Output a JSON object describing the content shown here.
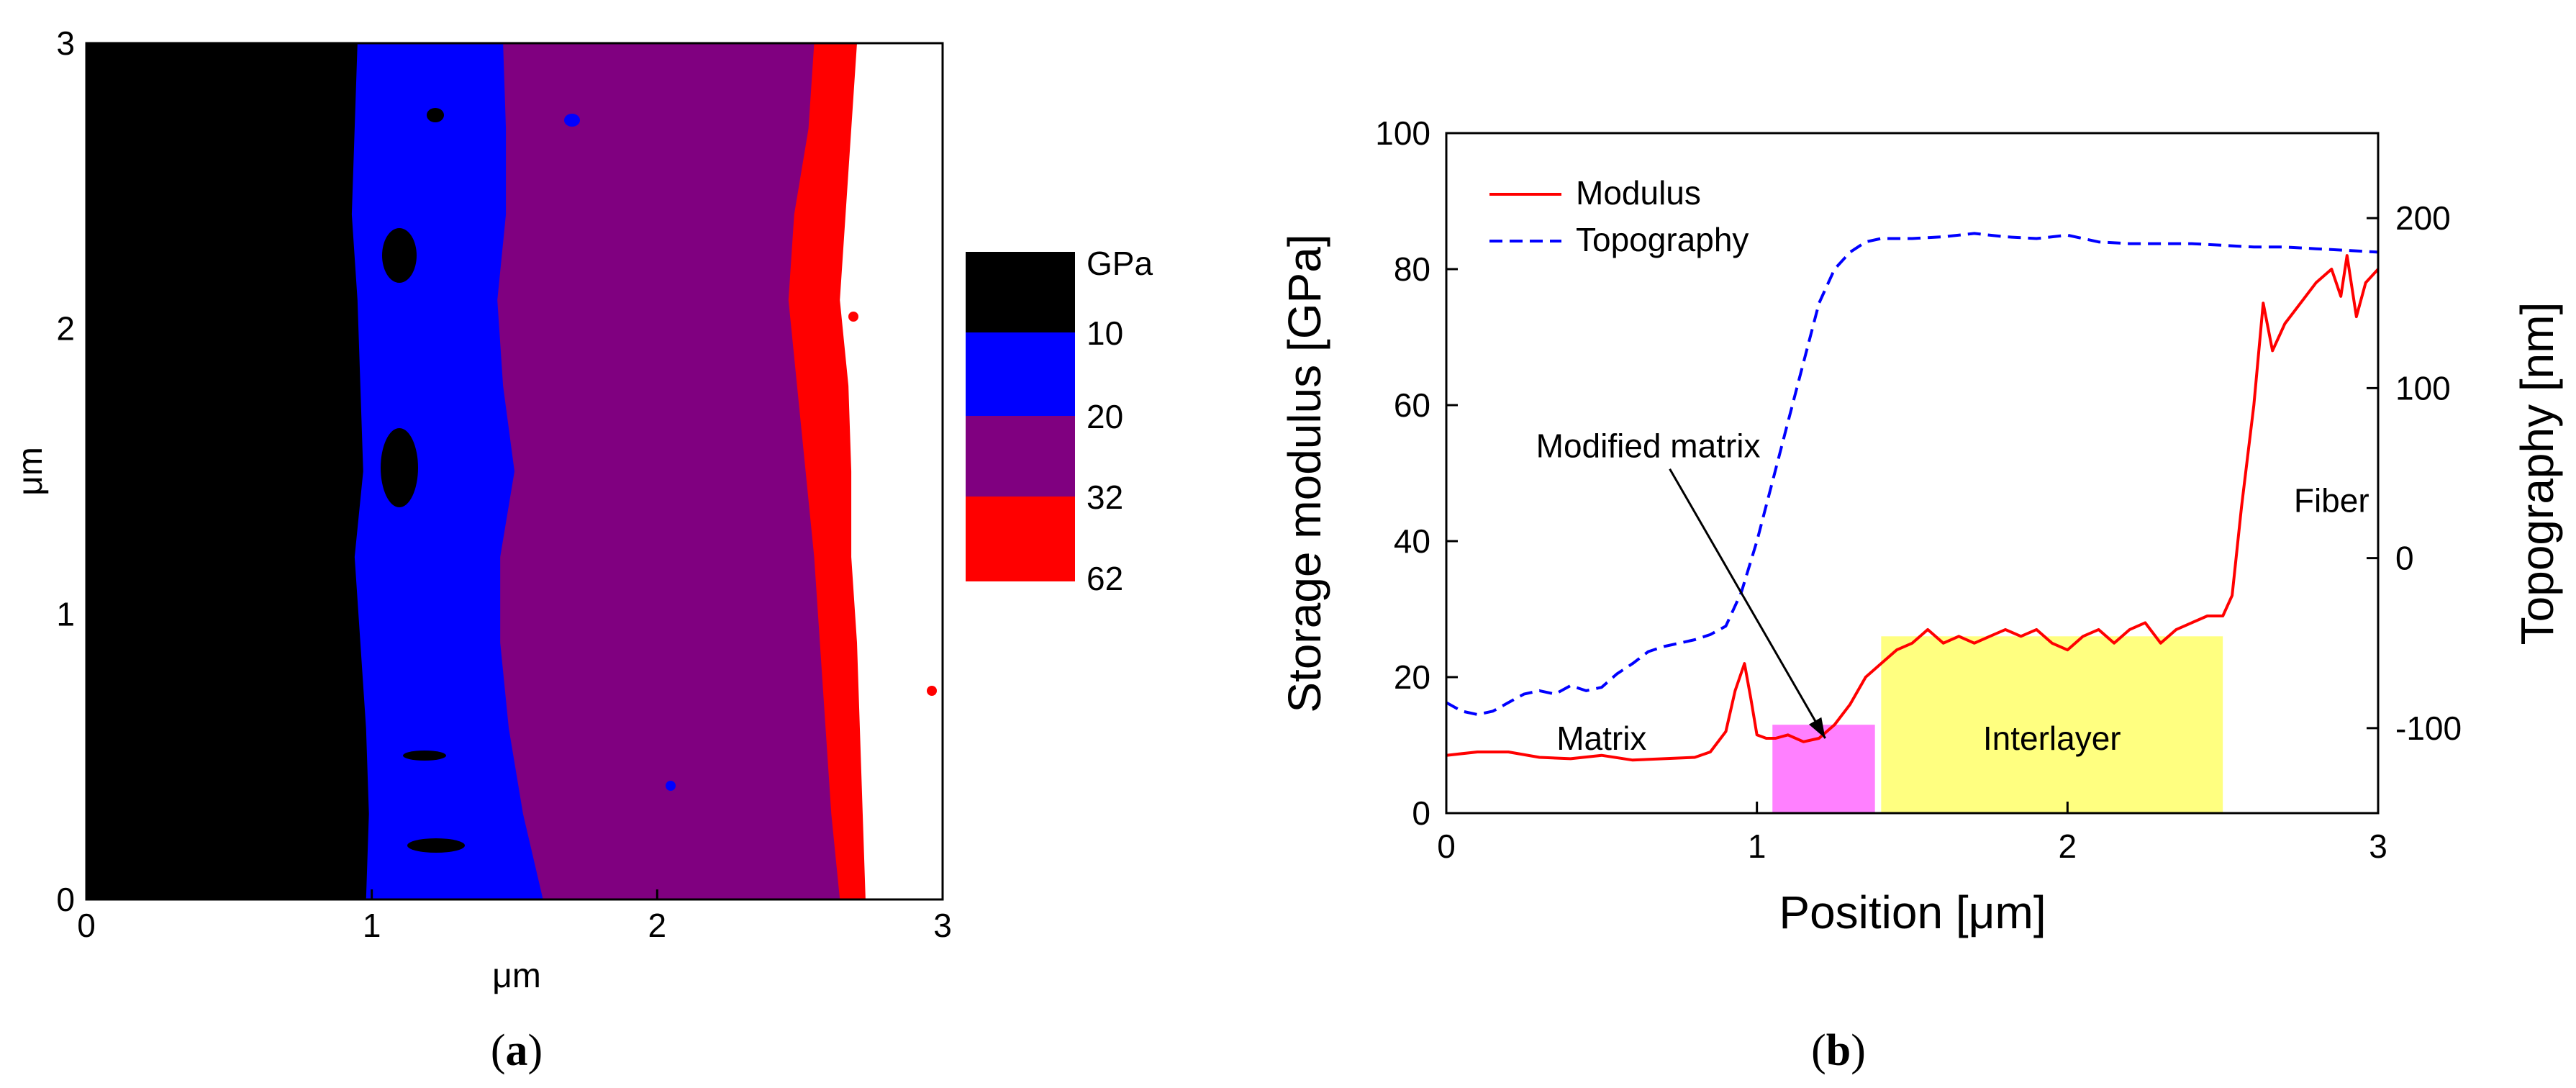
{
  "panels": {
    "a": {
      "caption_open": "(",
      "caption_letter": "a",
      "caption_close": ")"
    },
    "b": {
      "caption_open": "(",
      "caption_letter": "b",
      "caption_close": ")"
    }
  },
  "chart_data": [
    {
      "type": "heatmap",
      "xlabel": "μm",
      "ylabel": "μm",
      "xlim": [
        0,
        3
      ],
      "ylim": [
        0,
        3
      ],
      "xticks": [
        "0",
        "1",
        "2",
        "3"
      ],
      "yticks": [
        "0",
        "1",
        "2",
        "3"
      ],
      "colorbar": {
        "unit": "GPa",
        "labels": [
          "10",
          "20",
          "32",
          "62"
        ],
        "bins": [
          {
            "range": [
              0,
              10
            ],
            "color": "#000000"
          },
          {
            "range": [
              10,
              20
            ],
            "color": "#0000ff"
          },
          {
            "range": [
              20,
              32
            ],
            "color": "#800080"
          },
          {
            "range": [
              32,
              62
            ],
            "color": "#ff0000"
          },
          {
            "range": [
              62,
              null
            ],
            "color": "#ffffff"
          }
        ]
      },
      "region_boundaries": {
        "y": [
          3.0,
          2.7,
          2.4,
          2.1,
          1.8,
          1.5,
          1.2,
          0.9,
          0.6,
          0.3,
          0.0
        ],
        "black_to_blue": [
          0.95,
          0.94,
          0.93,
          0.95,
          0.96,
          0.97,
          0.94,
          0.96,
          0.98,
          0.99,
          0.98
        ],
        "blue_to_purple": [
          1.46,
          1.47,
          1.47,
          1.44,
          1.46,
          1.5,
          1.45,
          1.45,
          1.48,
          1.53,
          1.6
        ],
        "purple_to_red": [
          2.55,
          2.53,
          2.48,
          2.46,
          2.49,
          2.52,
          2.55,
          2.57,
          2.59,
          2.61,
          2.64
        ],
        "red_to_white": [
          2.7,
          2.68,
          2.66,
          2.64,
          2.67,
          2.68,
          2.68,
          2.7,
          2.71,
          2.72,
          2.73
        ]
      }
    },
    {
      "type": "line",
      "xlabel": "Position [μm]",
      "ylabel": "Storage modulus [GPa]",
      "y2label": "Topography [nm]",
      "xlim": [
        0,
        3
      ],
      "ylim": [
        0,
        100
      ],
      "y2lim": [
        -150,
        250
      ],
      "xticks": [
        "0",
        "1",
        "2",
        "3"
      ],
      "yticks": [
        "0",
        "20",
        "40",
        "60",
        "80",
        "100"
      ],
      "y2ticks": [
        "-100",
        "0",
        "100",
        "200"
      ],
      "legend": {
        "position": "top-left",
        "items": [
          "Modulus",
          "Topography"
        ]
      },
      "series": [
        {
          "name": "Modulus",
          "axis": "left",
          "color": "#ff0000",
          "style": "solid",
          "x": [
            0,
            0.1,
            0.2,
            0.3,
            0.4,
            0.5,
            0.6,
            0.7,
            0.8,
            0.85,
            0.9,
            0.93,
            0.96,
            0.98,
            1.0,
            1.03,
            1.06,
            1.1,
            1.15,
            1.2,
            1.25,
            1.3,
            1.35,
            1.4,
            1.45,
            1.5,
            1.55,
            1.6,
            1.65,
            1.7,
            1.75,
            1.8,
            1.85,
            1.9,
            1.95,
            2.0,
            2.05,
            2.1,
            2.15,
            2.2,
            2.25,
            2.3,
            2.35,
            2.4,
            2.45,
            2.5,
            2.53,
            2.56,
            2.6,
            2.63,
            2.66,
            2.7,
            2.75,
            2.8,
            2.85,
            2.88,
            2.9,
            2.93,
            2.96,
            3.0
          ],
          "y": [
            8.5,
            9,
            9,
            8.2,
            8,
            8.5,
            7.8,
            8,
            8.2,
            9,
            12,
            18,
            22,
            17,
            11.5,
            11,
            11,
            11.5,
            10.5,
            11,
            13,
            16,
            20,
            22,
            24,
            25,
            27,
            25,
            26,
            25,
            26,
            27,
            26,
            27,
            25,
            24,
            26,
            27,
            25,
            27,
            28,
            25,
            27,
            28,
            29,
            29,
            32,
            45,
            60,
            75,
            68,
            72,
            75,
            78,
            80,
            76,
            82,
            73,
            78,
            80
          ]
        },
        {
          "name": "Topography",
          "axis": "right",
          "color": "#0000ff",
          "style": "dashed",
          "x": [
            0,
            0.05,
            0.1,
            0.15,
            0.2,
            0.25,
            0.3,
            0.35,
            0.4,
            0.45,
            0.5,
            0.55,
            0.6,
            0.65,
            0.7,
            0.75,
            0.8,
            0.85,
            0.9,
            0.95,
            1.0,
            1.05,
            1.1,
            1.15,
            1.2,
            1.25,
            1.3,
            1.35,
            1.4,
            1.5,
            1.6,
            1.7,
            1.8,
            1.9,
            2.0,
            2.1,
            2.2,
            2.3,
            2.4,
            2.5,
            2.6,
            2.7,
            2.8,
            2.9,
            3.0
          ],
          "y": [
            -85,
            -90,
            -92,
            -90,
            -85,
            -80,
            -78,
            -80,
            -75,
            -78,
            -76,
            -68,
            -62,
            -55,
            -52,
            -50,
            -48,
            -45,
            -40,
            -20,
            10,
            45,
            80,
            115,
            150,
            170,
            180,
            186,
            188,
            188,
            189,
            191,
            189,
            188,
            190,
            186,
            185,
            185,
            185,
            184,
            183,
            183,
            182,
            181,
            180
          ]
        }
      ],
      "shaded_regions": [
        {
          "x": [
            1.05,
            1.38
          ],
          "y": [
            0,
            13
          ],
          "color": "#ff80ff"
        },
        {
          "x": [
            1.4,
            2.5
          ],
          "y": [
            0,
            26
          ],
          "color": "#ffff80",
          "label": "Interlayer"
        }
      ],
      "annotations": [
        {
          "text": "Matrix",
          "x": 0.5,
          "y": 11
        },
        {
          "text": "Modified matrix",
          "x": 0.65,
          "y": 54,
          "arrow_to": [
            1.22,
            11
          ]
        },
        {
          "text": "Interlayer",
          "x": 1.95,
          "y": 11
        },
        {
          "text": "Fiber",
          "x": 2.85,
          "y": 46
        }
      ]
    }
  ]
}
